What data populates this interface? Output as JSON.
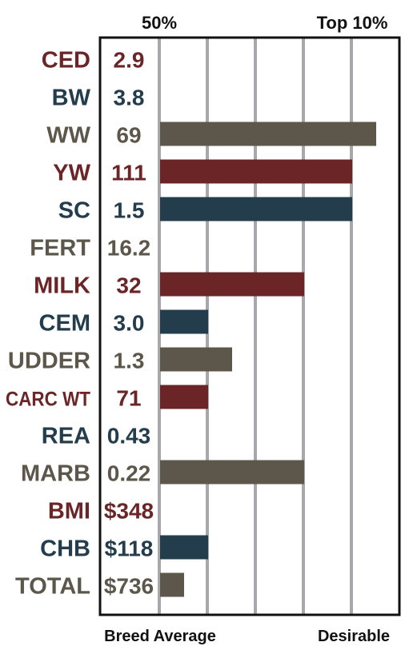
{
  "colors": {
    "brown_red": "#6b2527",
    "navy": "#233d4d",
    "taupe": "#5c564b",
    "grid": "#a9a7ab",
    "frame": "#111111"
  },
  "chart_data": {
    "type": "bar",
    "orientation": "horizontal",
    "top_labels": [
      "50%",
      "Top 10%"
    ],
    "bottom_labels": [
      "Breed Average",
      "Desirable"
    ],
    "scale_note": "bar length in grid units; 0 = breed average, 2 = 50%, 8 = top 10%",
    "xlim": [
      0,
      9.5
    ],
    "rows": [
      {
        "trait": "CED",
        "value": "2.9",
        "bar": 0,
        "color": "brown_red"
      },
      {
        "trait": "BW",
        "value": "3.8",
        "bar": 0,
        "color": "navy"
      },
      {
        "trait": "WW",
        "value": "69",
        "bar": 9.0,
        "color": "taupe"
      },
      {
        "trait": "YW",
        "value": "111",
        "bar": 8.0,
        "color": "brown_red"
      },
      {
        "trait": "SC",
        "value": "1.5",
        "bar": 8.0,
        "color": "navy"
      },
      {
        "trait": "FERT",
        "value": "16.2",
        "bar": 0,
        "color": "taupe"
      },
      {
        "trait": "MILK",
        "value": "32",
        "bar": 6.0,
        "color": "brown_red"
      },
      {
        "trait": "CEM",
        "value": "3.0",
        "bar": 2.0,
        "color": "navy"
      },
      {
        "trait": "UDDER",
        "value": "1.3",
        "bar": 3.0,
        "color": "taupe"
      },
      {
        "trait": "CARC WT",
        "value": "71",
        "bar": 2.0,
        "color": "brown_red"
      },
      {
        "trait": "REA",
        "value": "0.43",
        "bar": 0,
        "color": "navy"
      },
      {
        "trait": "MARB",
        "value": "0.22",
        "bar": 6.0,
        "color": "taupe"
      },
      {
        "trait": "BMI",
        "value": "$348",
        "bar": 0,
        "color": "brown_red"
      },
      {
        "trait": "CHB",
        "value": "$118",
        "bar": 2.0,
        "color": "navy"
      },
      {
        "trait": "TOTAL",
        "value": "$736",
        "bar": 1.0,
        "color": "taupe"
      }
    ]
  }
}
